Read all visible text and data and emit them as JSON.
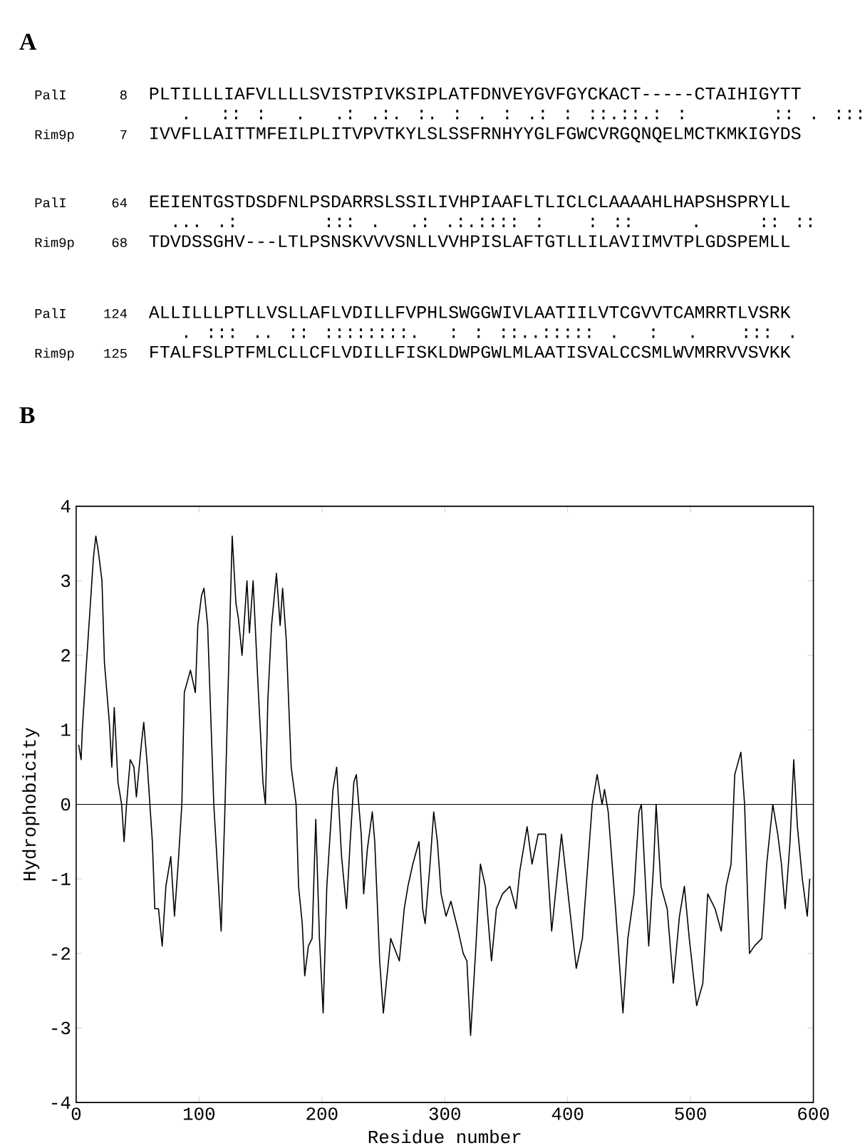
{
  "chart_data": {
    "type": "line",
    "xlabel": "Residue number",
    "ylabel": "Hydrophobicity",
    "annotations": [
      "A",
      "PalI",
      "8",
      "PLTILLLIAFVLLLLSVISTPIVKSIPLATFDNVEYGVFGYCKACT-----CTAIHIGYTT",
      "   .  :: :  .  .: .:. :. : . : .: : ::.::.: :      :: . :::",
      "Rim9p",
      "7",
      "IVVFLLAITTMFEILPLITVPVTKYLSLSSFRNHYYGLFGWCVRGQNQELMCTKMKIGYDS",
      "PalI",
      "64",
      "EEIENTGSTDSDFNLPSDARRSLSSILIVHPIAAFLTLICLCLAAAAHLHAPSHSPRYLL",
      "  ... .:      ::: .  .: .:.:::: :   : ::    .    :: ::",
      "Rim9p",
      "68",
      "TDVDSSGHV---LTLPSNSKVVVSNLLVVHPISLAFTGTLLILAVIIMVTPLGDSPEMLL",
      "PalI",
      "124",
      "ALLILLLPTLLVSLLAFLVDILLFVPHLSWGGWIVLAATIILVTCGVVTCAMRRTLVSRK",
      "   . ::: .. :: ::::::::.  : : ::..::::: .  :  .   ::: .",
      "Rim9p",
      "125",
      "FTALFSLPTFMLCLLCFLVDILLFISKLDWPGWLMLAATISVALCCSMLWVMRRVVSVKK",
      "B"
    ],
    "x": [
      2,
      4,
      5,
      8,
      10,
      14,
      16,
      18,
      21,
      23,
      27,
      29,
      31,
      34,
      37,
      39,
      41,
      44,
      47,
      49,
      53,
      55,
      58,
      62,
      64,
      67,
      70,
      73,
      77,
      80,
      83,
      86,
      88,
      93,
      97,
      99,
      102,
      104,
      107,
      112,
      118,
      121,
      125,
      127,
      130,
      132,
      135,
      139,
      141,
      144,
      148,
      152,
      154,
      156,
      159,
      163,
      166,
      168,
      171,
      175,
      179,
      181,
      184,
      186,
      189,
      192,
      195,
      198,
      201,
      204,
      209,
      212,
      216,
      220,
      223,
      226,
      228,
      232,
      234,
      237,
      241,
      243,
      247,
      250,
      253,
      256,
      263,
      267,
      270,
      274,
      279,
      282,
      284,
      288,
      291,
      294,
      297,
      301,
      305,
      311,
      315,
      318,
      321,
      325,
      329,
      333,
      338,
      342,
      347,
      353,
      358,
      361,
      367,
      371,
      376,
      382,
      387,
      395,
      401,
      407,
      412,
      416,
      420,
      424,
      428,
      430,
      433,
      439,
      445,
      449,
      454,
      458,
      460,
      466,
      470,
      472,
      476,
      481,
      486,
      491,
      495,
      499,
      505,
      510,
      514,
      520,
      525,
      529,
      533,
      536,
      541,
      544,
      548,
      552,
      558,
      562,
      567,
      571,
      574,
      577,
      581,
      584,
      587,
      591,
      595,
      597
    ],
    "values": [
      0.8,
      0.6,
      1.0,
      1.8,
      2.3,
      3.3,
      3.6,
      3.4,
      3.0,
      1.9,
      1.1,
      0.5,
      1.3,
      0.3,
      0.0,
      -0.5,
      0.0,
      0.6,
      0.5,
      0.1,
      0.8,
      1.1,
      0.5,
      -0.5,
      -1.4,
      -1.4,
      -1.9,
      -1.1,
      -0.7,
      -1.5,
      -0.8,
      0.0,
      1.5,
      1.8,
      1.5,
      2.4,
      2.8,
      2.9,
      2.4,
      0.0,
      -1.7,
      -0.1,
      2.4,
      3.6,
      2.7,
      2.5,
      2.0,
      3.0,
      2.3,
      3.0,
      1.6,
      0.3,
      0.0,
      1.4,
      2.4,
      3.1,
      2.4,
      2.9,
      2.2,
      0.5,
      0.0,
      -1.1,
      -1.6,
      -2.3,
      -1.9,
      -1.8,
      -0.2,
      -1.8,
      -2.8,
      -1.1,
      0.2,
      0.5,
      -0.7,
      -1.4,
      -0.5,
      0.3,
      0.4,
      -0.4,
      -1.2,
      -0.6,
      -0.1,
      -0.5,
      -2.1,
      -2.8,
      -2.3,
      -1.8,
      -2.1,
      -1.4,
      -1.1,
      -0.8,
      -0.5,
      -1.4,
      -1.6,
      -0.8,
      -0.1,
      -0.5,
      -1.2,
      -1.5,
      -1.3,
      -1.7,
      -2.0,
      -2.1,
      -3.1,
      -2.0,
      -0.8,
      -1.1,
      -2.1,
      -1.4,
      -1.2,
      -1.1,
      -1.4,
      -0.9,
      -0.3,
      -0.8,
      -0.4,
      -0.4,
      -1.7,
      -0.4,
      -1.3,
      -2.2,
      -1.8,
      -0.9,
      0.0,
      0.4,
      0.0,
      0.2,
      -0.1,
      -1.4,
      -2.8,
      -1.8,
      -1.2,
      -0.1,
      0.0,
      -1.9,
      -0.8,
      0.0,
      -1.1,
      -1.4,
      -2.4,
      -1.5,
      -1.1,
      -1.8,
      -2.7,
      -2.4,
      -1.2,
      -1.4,
      -1.7,
      -1.1,
      -0.8,
      0.4,
      0.7,
      0.0,
      -2.0,
      -1.9,
      -1.8,
      -0.8,
      0.0,
      -0.4,
      -0.8,
      -1.4,
      -0.5,
      0.6,
      -0.3,
      -1.0,
      -1.5,
      -1.0
    ],
    "color": "#000000",
    "xlim": [
      0,
      600
    ],
    "ylim": [
      -4,
      4
    ],
    "xticks": [
      0,
      100,
      200,
      300,
      400,
      500,
      600
    ],
    "yticks": [
      -4,
      -3,
      -2,
      -1,
      0,
      1,
      2,
      3,
      4
    ],
    "ref_lines": [
      {
        "axis": "y",
        "value": 0
      }
    ]
  }
}
